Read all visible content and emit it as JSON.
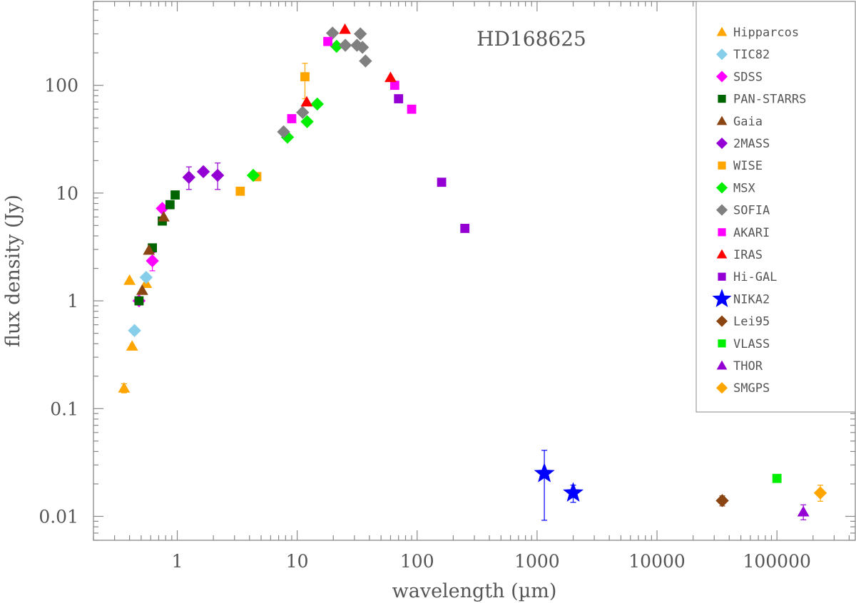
{
  "chart_data": {
    "type": "scatter",
    "title": "HD168625",
    "xlabel": "wavelength (µm)",
    "ylabel": "flux density (Jy)",
    "xscale": "log",
    "yscale": "log",
    "xlim": [
      0.2,
      450000
    ],
    "ylim": [
      0.006,
      600
    ],
    "x_tick_labels": [
      "1",
      "10",
      "100",
      "1000",
      "10000",
      "100000"
    ],
    "y_tick_labels": [
      "0.01",
      "0.1",
      "1",
      "10",
      "100"
    ],
    "legend_position": "top-right",
    "series": [
      {
        "name": "Hipparcos",
        "marker": "triangle-up",
        "color": "#FFA500",
        "points": [
          {
            "x": 0.36,
            "y": 0.155,
            "err": [
              0.14,
              0.17
            ]
          },
          {
            "x": 0.42,
            "y": 0.38
          },
          {
            "x": 0.4,
            "y": 1.55
          },
          {
            "x": 0.55,
            "y": 1.45
          }
        ]
      },
      {
        "name": "TIC82",
        "marker": "diamond",
        "color": "#87CEEB",
        "points": [
          {
            "x": 0.44,
            "y": 0.53
          },
          {
            "x": 0.55,
            "y": 1.65
          }
        ]
      },
      {
        "name": "SDSS",
        "marker": "diamond",
        "color": "#FF00FF",
        "points": [
          {
            "x": 0.48,
            "y": 1.0
          },
          {
            "x": 0.62,
            "y": 2.35,
            "err": [
              1.9,
              2.8
            ]
          },
          {
            "x": 0.75,
            "y": 7.2
          }
        ]
      },
      {
        "name": "PAN-STARRS",
        "marker": "square",
        "color": "#006400",
        "points": [
          {
            "x": 0.48,
            "y": 1.0
          },
          {
            "x": 0.62,
            "y": 3.1
          },
          {
            "x": 0.75,
            "y": 5.5
          },
          {
            "x": 0.87,
            "y": 7.8
          },
          {
            "x": 0.96,
            "y": 9.6
          }
        ]
      },
      {
        "name": "Gaia",
        "marker": "triangle-up",
        "color": "#8B4513",
        "points": [
          {
            "x": 0.51,
            "y": 1.25
          },
          {
            "x": 0.58,
            "y": 2.95
          },
          {
            "x": 0.77,
            "y": 6.0
          }
        ]
      },
      {
        "name": "2MASS",
        "marker": "diamond",
        "color": "#9400D3",
        "points": [
          {
            "x": 1.25,
            "y": 14.0,
            "err": [
              10.8,
              17.5
            ]
          },
          {
            "x": 1.65,
            "y": 15.8
          },
          {
            "x": 2.17,
            "y": 14.6,
            "err": [
              10.8,
              19.0
            ]
          }
        ]
      },
      {
        "name": "WISE",
        "marker": "square",
        "color": "#FFA500",
        "points": [
          {
            "x": 3.35,
            "y": 10.4
          },
          {
            "x": 4.6,
            "y": 14.2
          },
          {
            "x": 11.6,
            "y": 120,
            "err": [
              75,
              160
            ]
          }
        ]
      },
      {
        "name": "MSX",
        "marker": "diamond",
        "color": "#00EE00",
        "points": [
          {
            "x": 4.3,
            "y": 14.6
          },
          {
            "x": 8.3,
            "y": 33
          },
          {
            "x": 12.1,
            "y": 46
          },
          {
            "x": 14.7,
            "y": 67
          },
          {
            "x": 21.3,
            "y": 230
          }
        ]
      },
      {
        "name": "SOFIA",
        "marker": "diamond",
        "color": "#808080",
        "points": [
          {
            "x": 7.7,
            "y": 37
          },
          {
            "x": 11.1,
            "y": 56
          },
          {
            "x": 19.7,
            "y": 305
          },
          {
            "x": 25.2,
            "y": 235
          },
          {
            "x": 31.5,
            "y": 235
          },
          {
            "x": 33.6,
            "y": 300
          },
          {
            "x": 35.0,
            "y": 225
          },
          {
            "x": 37.1,
            "y": 168
          }
        ]
      },
      {
        "name": "AKARI",
        "marker": "square",
        "color": "#FF00FF",
        "points": [
          {
            "x": 9,
            "y": 49
          },
          {
            "x": 18,
            "y": 255
          },
          {
            "x": 65,
            "y": 100
          },
          {
            "x": 90,
            "y": 60
          }
        ]
      },
      {
        "name": "IRAS",
        "marker": "triangle-up",
        "color": "#FF0000",
        "points": [
          {
            "x": 12,
            "y": 70
          },
          {
            "x": 25,
            "y": 330
          },
          {
            "x": 60,
            "y": 118
          }
        ]
      },
      {
        "name": "Hi-GAL",
        "marker": "square",
        "color": "#9400D3",
        "points": [
          {
            "x": 70,
            "y": 75
          },
          {
            "x": 160,
            "y": 12.6
          },
          {
            "x": 250,
            "y": 4.7
          }
        ]
      },
      {
        "name": "NIKA2",
        "marker": "star",
        "color": "#0000FF",
        "points": [
          {
            "x": 1150,
            "y": 0.025,
            "err": [
              0.0092,
              0.041
            ]
          },
          {
            "x": 2000,
            "y": 0.0165,
            "err": [
              0.0135,
              0.0195
            ]
          }
        ]
      },
      {
        "name": "Lei95",
        "marker": "diamond",
        "color": "#8B4513",
        "points": [
          {
            "x": 35000,
            "y": 0.014,
            "err": [
              0.0125,
              0.0155
            ]
          }
        ]
      },
      {
        "name": "VLASS",
        "marker": "square",
        "color": "#00EE00",
        "points": [
          {
            "x": 100000,
            "y": 0.0225
          }
        ]
      },
      {
        "name": "THOR",
        "marker": "triangle-up",
        "color": "#9400D3",
        "points": [
          {
            "x": 166000,
            "y": 0.011,
            "err": [
              0.0093,
              0.0128
            ]
          }
        ]
      },
      {
        "name": "SMGPS",
        "marker": "diamond",
        "color": "#FFA500",
        "points": [
          {
            "x": 230000,
            "y": 0.0165,
            "err": [
              0.0138,
              0.0195
            ]
          }
        ]
      }
    ]
  }
}
